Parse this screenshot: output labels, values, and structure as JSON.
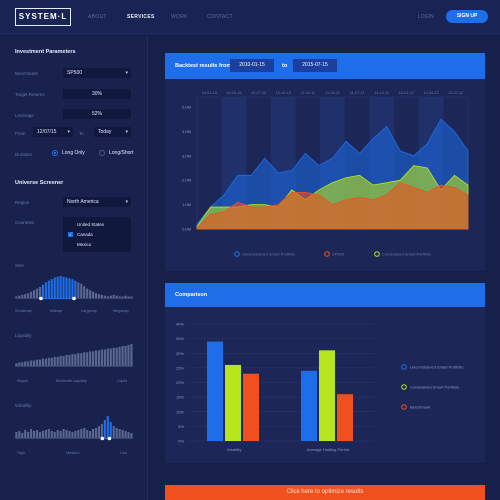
{
  "header": {
    "logo": "SYSTEM·L",
    "nav": [
      {
        "label": "ABOUT",
        "active": false
      },
      {
        "label": "SERVICES",
        "active": true
      },
      {
        "label": "WORK",
        "active": false
      },
      {
        "label": "CONTACT",
        "active": false
      }
    ],
    "login_label": "LOGIN",
    "signup_label": "SIGN UP"
  },
  "investment": {
    "title": "Investment Parameters",
    "benchmark_label": "Benchmark",
    "benchmark_value": "SP500",
    "target_return_label": "Target Returns",
    "target_return_value": "30%",
    "leverage_label": "Leverage",
    "leverage_value": "52%",
    "from_label": "From",
    "from_value": "12/07/15",
    "to_label": "To",
    "to_value": "Today",
    "duration_label": "Duration",
    "duration_options": [
      {
        "label": "Long Only",
        "selected": true
      },
      {
        "label": "Long/Short",
        "selected": false
      }
    ]
  },
  "universe": {
    "title": "Universe Screener",
    "region_label": "Region",
    "region_value": "North America",
    "countries_label": "Countries",
    "countries": [
      {
        "label": "United States",
        "checked": false
      },
      {
        "label": "Canada",
        "checked": true
      },
      {
        "label": "Mexico",
        "checked": false
      }
    ],
    "size": {
      "label": "Size",
      "ticks": [
        "Small/cap",
        "Midcap",
        "Largecap",
        "Megacap"
      ],
      "range": [
        0.22,
        0.5
      ],
      "bars": [
        2,
        3,
        4,
        5,
        6,
        8,
        10,
        12,
        14,
        17,
        20,
        22,
        24,
        26,
        27,
        28,
        27,
        26,
        25,
        24,
        22,
        20,
        18,
        15,
        12,
        10,
        8,
        6,
        5,
        4,
        3,
        2,
        3,
        4,
        3,
        2,
        2,
        3,
        2,
        2
      ]
    },
    "liquidity": {
      "label": "Liquidity",
      "ticks": [
        "Illiquid",
        "Moderate Liquidity",
        "Liquid"
      ],
      "range": null,
      "bars": [
        3,
        4,
        4,
        5,
        5,
        6,
        6,
        7,
        7,
        8,
        8,
        9,
        9,
        10,
        10,
        11,
        11,
        12,
        12,
        13,
        13,
        14,
        14,
        15,
        15,
        16,
        16,
        17,
        17,
        18,
        18,
        19,
        19,
        20,
        20,
        21,
        22,
        22,
        23,
        24
      ]
    },
    "volatility": {
      "label": "Volatility",
      "ticks": [
        "High",
        "Medium",
        "Low"
      ],
      "range": [
        0.74,
        0.8
      ],
      "bars": [
        6,
        7,
        5,
        8,
        6,
        9,
        7,
        8,
        6,
        7,
        8,
        9,
        7,
        6,
        8,
        7,
        9,
        8,
        7,
        6,
        7,
        8,
        9,
        10,
        8,
        7,
        9,
        10,
        12,
        14,
        18,
        22,
        16,
        12,
        10,
        9,
        8,
        7,
        6,
        5
      ]
    }
  },
  "backtest": {
    "title_prefix": "Backtest results from",
    "from_date": "2010-01-15",
    "to_word": "to",
    "to_date": "2015-07-15"
  },
  "comparison": {
    "title": "Comparison"
  },
  "cta_label": "Click here to optimize results",
  "chart_data": [
    {
      "type": "area",
      "categories": [
        "10-01-15",
        "10-04-15",
        "10-07-15",
        "10-10-15",
        "11-01-11",
        "11-04-11",
        "11-07-11",
        "11-10-11",
        "12-01-12",
        "12-04-12",
        "12-07-12"
      ],
      "y_ticks": [
        "0.0M",
        "1.0M",
        "2.0M",
        "3.0M",
        "4.0M",
        "5.0M"
      ],
      "ylim": [
        0,
        5
      ],
      "x": [
        0,
        0.5,
        1,
        1.5,
        2,
        2.5,
        3,
        3.5,
        4,
        4.5,
        5,
        5.5,
        6,
        6.5,
        7,
        7.5,
        8,
        8.5,
        9,
        9.5,
        10
      ],
      "series": [
        {
          "name": "Unconstrained Smart Portfolio",
          "color": "#1d6ee8",
          "values": [
            0.2,
            0.9,
            1.4,
            2.2,
            2.2,
            2.9,
            2.3,
            2.4,
            3.1,
            2.6,
            2.9,
            3.6,
            3.1,
            3.7,
            4.2,
            3.2,
            3.0,
            3.5,
            4.5,
            4.0,
            3.2
          ]
        },
        {
          "name": "Constrained Smart Portfolio",
          "color": "#b5e61d",
          "values": [
            0.1,
            0.9,
            0.9,
            0.9,
            1.0,
            1.0,
            0.9,
            1.6,
            1.2,
            1.6,
            1.9,
            2.1,
            2.2,
            1.8,
            1.9,
            2.0,
            2.6,
            2.5,
            1.6,
            2.2,
            1.8
          ]
        },
        {
          "name": "SP500",
          "color": "#f0501e",
          "values": [
            0.05,
            0.6,
            0.7,
            1.1,
            0.9,
            0.9,
            1.0,
            1.5,
            1.5,
            1.4,
            1.0,
            1.2,
            1.3,
            1.2,
            1.4,
            1.9,
            1.7,
            1.5,
            1.8,
            1.7,
            1.4
          ]
        }
      ],
      "legend": [
        "Unconstrained Smart Portfolio",
        "SP500",
        "Constrained Smart Portfolio"
      ]
    },
    {
      "type": "bar",
      "categories": [
        "Volatility",
        "Average Holding Period"
      ],
      "y_ticks": [
        "0%",
        "5%",
        "10%",
        "15%",
        "20%",
        "25%",
        "30%",
        "35%",
        "40%"
      ],
      "ylim": [
        0,
        40
      ],
      "series": [
        {
          "name": "Unconstrained Smart Portfolio",
          "color": "#1d6ee8",
          "values": [
            34,
            24
          ]
        },
        {
          "name": "Constrained Smart Portfolio",
          "color": "#b5e61d",
          "values": [
            26,
            31
          ]
        },
        {
          "name": "Benchmark",
          "color": "#f0501e",
          "values": [
            23,
            16
          ]
        }
      ],
      "legend_position": "right"
    }
  ]
}
